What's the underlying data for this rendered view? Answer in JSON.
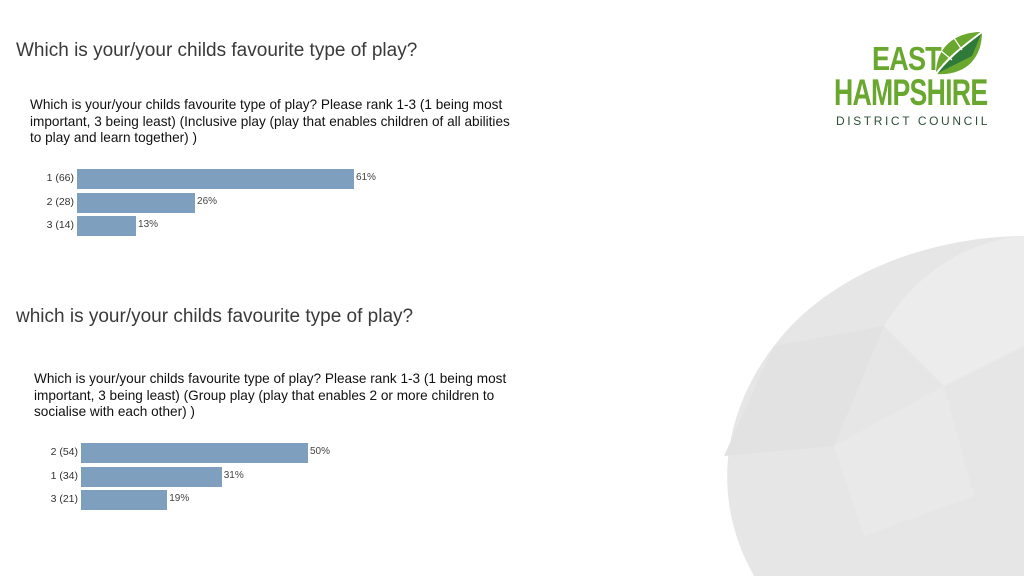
{
  "slide": {
    "heading_1": "Which is your/your childs favourite type of play?",
    "heading_2": "which is your/your childs favourite type of play?"
  },
  "logo": {
    "line1": "EAST",
    "line2": "HAMPSHIRE",
    "line3": "DISTRICT COUNCIL"
  },
  "colors": {
    "bar": "#7f9fbf",
    "logo_green": "#6aa72e",
    "background_shape": "#e6e6e6"
  },
  "chart_data": [
    {
      "type": "bar",
      "orientation": "horizontal",
      "title": "Which is your/your childs favourite type of play? Please rank 1-3 (1 being most\nimportant, 3 being least)  (Inclusive play (play that enables children of all abilities\nto play and learn together) )",
      "categories": [
        "1 (66)",
        "2 (28)",
        "3 (14)"
      ],
      "values": [
        61,
        26,
        13
      ],
      "value_labels": [
        "61%",
        "26%",
        "13%"
      ],
      "unit": "%",
      "xlim": [
        0,
        100
      ]
    },
    {
      "type": "bar",
      "orientation": "horizontal",
      "title": "Which is your/your childs favourite type of play? Please rank 1-3 (1 being most\nimportant, 3 being least)  (Group play (play that enables 2 or more children to\nsocialise with each other) )",
      "categories": [
        "2 (54)",
        "1 (34)",
        "3 (21)"
      ],
      "values": [
        50,
        31,
        19
      ],
      "value_labels": [
        "50%",
        "31%",
        "19%"
      ],
      "unit": "%",
      "xlim": [
        0,
        100
      ]
    }
  ]
}
